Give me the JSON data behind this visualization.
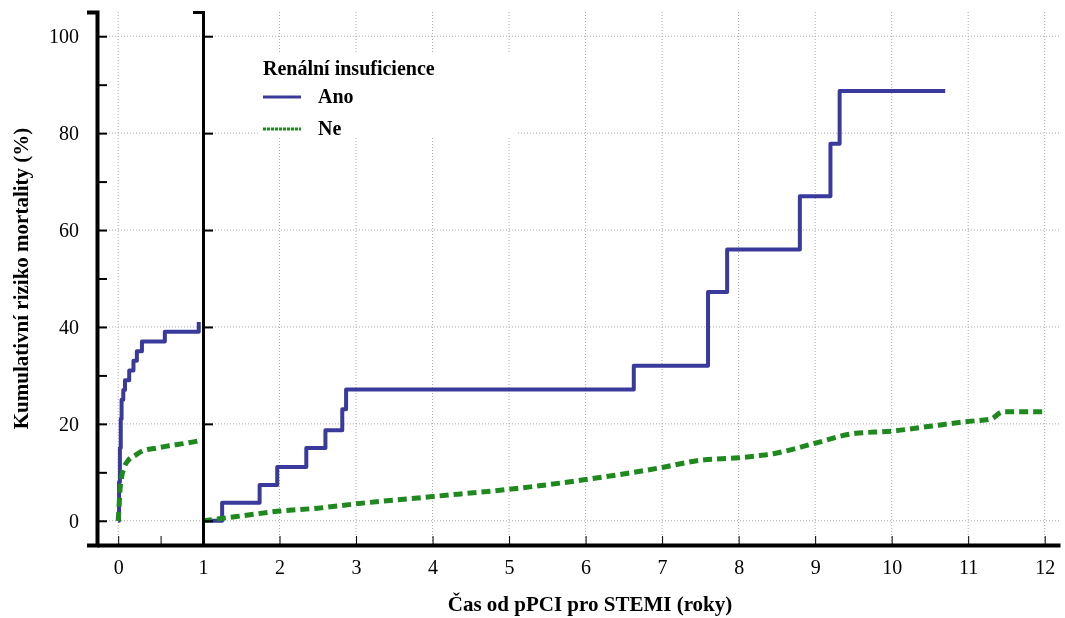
{
  "chart_data": [
    {
      "type": "step",
      "xlim": [
        -0.25,
        1
      ],
      "xticks": [
        0,
        {
          "value": 0.5,
          "label": null
        },
        1
      ],
      "ylim": [
        -5,
        105
      ],
      "yticks": [
        0,
        {
          "value": 10,
          "label": null
        },
        20,
        {
          "value": 30,
          "label": null
        },
        40,
        {
          "value": 50,
          "label": null
        },
        60,
        {
          "value": 70,
          "label": null
        },
        80,
        {
          "value": 90,
          "label": null
        },
        100
      ],
      "ylabel": "Kumulativní riziko mortality (%)",
      "grid": true,
      "legend": false,
      "series": [
        {
          "color": "#3a3a9c",
          "line_style": "solid",
          "x": [
            0,
            0.01,
            0.02,
            0.03,
            0.04,
            0.06,
            0.08,
            0.13,
            0.18,
            0.22,
            0.28,
            0.55,
            0.93,
            0.95
          ],
          "values": [
            0,
            8,
            15,
            21,
            25,
            27,
            29,
            31,
            33,
            35,
            37,
            39,
            39,
            41
          ]
        },
        {
          "type": "line",
          "color": "#1e8a1e",
          "line_style": "dashed",
          "x": [
            0,
            0.01,
            0.02,
            0.04,
            0.07,
            0.12,
            0.2,
            0.3,
            0.45,
            0.6,
            0.8,
            0.95
          ],
          "values": [
            0,
            3,
            6,
            9,
            11,
            12.5,
            13.5,
            14.5,
            15,
            15.5,
            16,
            16.5
          ]
        }
      ]
    },
    {
      "type": "step",
      "xlim": [
        1,
        12.2
      ],
      "xticks": [
        {
          "value": 1,
          "label": null
        },
        2,
        3,
        4,
        5,
        6,
        7,
        8,
        9,
        10,
        11,
        12
      ],
      "ylim": [
        -5,
        105
      ],
      "yticks": [
        0,
        20,
        40,
        60,
        80,
        100
      ],
      "xlabel": "Čas od pPCI pro STEMI (roky)",
      "grid": true,
      "tick_labels": "x",
      "legend": "top left",
      "legend_title": "Renální insuficience",
      "series": [
        {
          "name": "Ano",
          "color": "#3a3a9c",
          "line_style": "solid",
          "x": [
            1,
            1.25,
            1.74,
            1.97,
            2.35,
            2.6,
            2.82,
            2.87,
            6.63,
            7.6,
            7.85,
            8.8,
            9.2,
            9.32,
            10.7
          ],
          "values": [
            0,
            3.7,
            7.4,
            11.1,
            15,
            18.7,
            23,
            27.1,
            32,
            47.2,
            56,
            67,
            77.8,
            88.7,
            88.7
          ]
        },
        {
          "name": "Ne",
          "type": "line",
          "color": "#1e8a1e",
          "line_style": "dashed",
          "x": [
            1,
            1.5,
            2,
            2.5,
            3,
            4,
            5,
            6,
            7,
            7.5,
            8,
            8.5,
            9,
            9.5,
            10,
            10.5,
            11,
            11.3,
            11.45,
            12
          ],
          "values": [
            0,
            1,
            2,
            2.6,
            3.5,
            5,
            6.5,
            8.5,
            11,
            12.5,
            13,
            14,
            16,
            18,
            18.5,
            19.5,
            20.5,
            21,
            22.5,
            22.5
          ]
        }
      ]
    }
  ]
}
